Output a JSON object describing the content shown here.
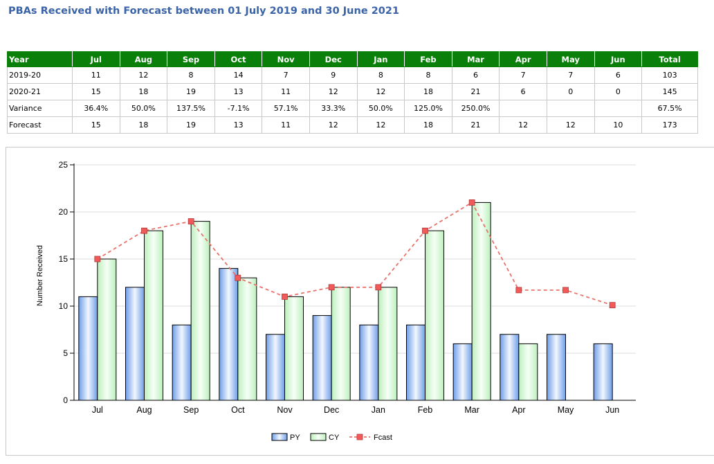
{
  "title": "PBAs Received with Forecast between 01 July 2019 and 30 June 2021",
  "table": {
    "headers": [
      "Year",
      "Jul",
      "Aug",
      "Sep",
      "Oct",
      "Nov",
      "Dec",
      "Jan",
      "Feb",
      "Mar",
      "Apr",
      "May",
      "Jun",
      "Total"
    ],
    "rows": [
      [
        "2019-20",
        "11",
        "12",
        "8",
        "14",
        "7",
        "9",
        "8",
        "8",
        "6",
        "7",
        "7",
        "6",
        "103"
      ],
      [
        "2020-21",
        "15",
        "18",
        "19",
        "13",
        "11",
        "12",
        "12",
        "18",
        "21",
        "6",
        "0",
        "0",
        "145"
      ],
      [
        "Variance",
        "36.4%",
        "50.0%",
        "137.5%",
        "-7.1%",
        "57.1%",
        "33.3%",
        "50.0%",
        "125.0%",
        "250.0%",
        "",
        "",
        "",
        "67.5%"
      ],
      [
        "Forecast",
        "15",
        "18",
        "19",
        "13",
        "11",
        "12",
        "12",
        "18",
        "21",
        "12",
        "12",
        "10",
        "173"
      ]
    ]
  },
  "colors": {
    "header_bg": "#0a800a",
    "py_fill": "#6f9ee8",
    "cy_fill": "#c4f2c4",
    "fcast_line": "#e8736b",
    "fcast_marker": "#f25a5a"
  },
  "chart_data": {
    "type": "bar",
    "categories": [
      "Jul",
      "Aug",
      "Sep",
      "Oct",
      "Nov",
      "Dec",
      "Jan",
      "Feb",
      "Mar",
      "Apr",
      "May",
      "Jun"
    ],
    "series": [
      {
        "name": "PY",
        "type": "bar",
        "values": [
          11,
          12,
          8,
          14,
          7,
          9,
          8,
          8,
          6,
          7,
          7,
          6
        ]
      },
      {
        "name": "CY",
        "type": "bar",
        "values": [
          15,
          18,
          19,
          13,
          11,
          12,
          12,
          18,
          21,
          6,
          null,
          null
        ]
      },
      {
        "name": "Fcast",
        "type": "line",
        "values": [
          15,
          18,
          19,
          13,
          11,
          12,
          12,
          18,
          21,
          11.7,
          11.7,
          10.1
        ]
      }
    ],
    "ylabel": "Number Received",
    "ylim": [
      0,
      25
    ],
    "yticks": [
      "0",
      "5",
      "10",
      "15",
      "20",
      "25"
    ],
    "grid": true,
    "legend": "bottom-center"
  }
}
